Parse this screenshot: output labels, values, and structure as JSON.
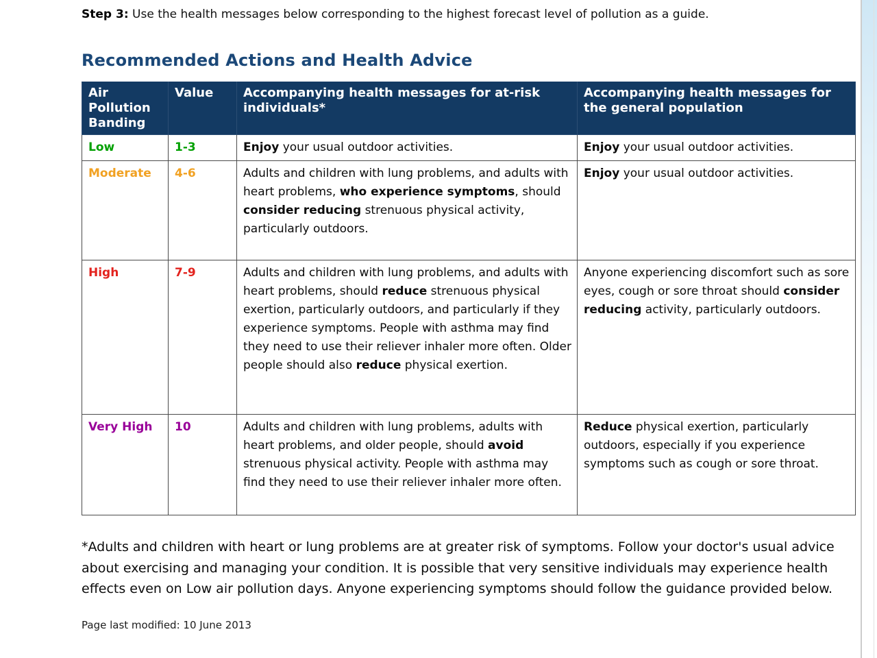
{
  "page": {
    "step_label": "Step 3:",
    "step_text": " Use the health messages below corresponding to the highest forecast level of pollution as a guide.",
    "heading": "Recommended Actions and Health Advice",
    "footnote": "*Adults and children with heart or lung problems are at greater risk of symptoms. Follow your doctor's usual advice about exercising and managing your condition. It is possible that very sensitive individuals may experience health effects even on Low air pollution days. Anyone experiencing symptoms should follow the guidance provided below.",
    "last_modified": "Page last modified: 10 June 2013"
  },
  "colors": {
    "header_bg": "#133a63",
    "heading_text": "#1b4878",
    "low": "#00a000",
    "moderate": "#f1a122",
    "high": "#e3231e",
    "very_high": "#990099"
  },
  "table": {
    "headers": [
      "Air Pollution Banding",
      "Value",
      "Accompanying health messages for at-risk individuals*",
      "Accompanying health messages for the general population"
    ],
    "rows": [
      {
        "banding": "Low",
        "value": "1-3",
        "at_risk": [
          {
            "t": "Enjoy",
            "b": 1
          },
          {
            "t": " your usual outdoor activities.",
            "b": 0
          }
        ],
        "general": [
          {
            "t": "Enjoy",
            "b": 1
          },
          {
            "t": " your usual outdoor activities.",
            "b": 0
          }
        ]
      },
      {
        "banding": "Moderate",
        "value": "4-6",
        "at_risk": [
          {
            "t": "Adults and children with lung problems, and adults with heart problems, ",
            "b": 0
          },
          {
            "t": "who experience symptoms",
            "b": 1
          },
          {
            "t": ", should ",
            "b": 0
          },
          {
            "t": "consider reducing",
            "b": 1
          },
          {
            "t": " strenuous physical activity, particularly outdoors.",
            "b": 0
          }
        ],
        "general": [
          {
            "t": "Enjoy",
            "b": 1
          },
          {
            "t": " your usual outdoor activities.",
            "b": 0
          }
        ]
      },
      {
        "banding": "High",
        "value": "7-9",
        "at_risk": [
          {
            "t": "Adults and children with lung problems, and adults with heart problems, should ",
            "b": 0
          },
          {
            "t": "reduce",
            "b": 1
          },
          {
            "t": " strenuous physical exertion, particularly outdoors, and particularly if they experience symptoms. People with asthma may find they need to use their reliever inhaler more often. Older people should also ",
            "b": 0
          },
          {
            "t": "reduce",
            "b": 1
          },
          {
            "t": " physical exertion.",
            "b": 0
          }
        ],
        "general": [
          {
            "t": "Anyone experiencing discomfort such as sore eyes, cough or sore throat should ",
            "b": 0
          },
          {
            "t": "consider reducing",
            "b": 1
          },
          {
            "t": " activity, particularly outdoors.",
            "b": 0
          }
        ]
      },
      {
        "banding": "Very High",
        "value": "10",
        "at_risk": [
          {
            "t": "Adults and children with lung problems, adults with heart problems, and older people, should ",
            "b": 0
          },
          {
            "t": "avoid",
            "b": 1
          },
          {
            "t": " strenuous physical activity. People with asthma may find they need to use their reliever inhaler more often.",
            "b": 0
          }
        ],
        "general": [
          {
            "t": "Reduce",
            "b": 1
          },
          {
            "t": " physical exertion, particularly outdoors, especially if you experience symptoms such as cough or sore throat.",
            "b": 0
          }
        ]
      }
    ]
  }
}
